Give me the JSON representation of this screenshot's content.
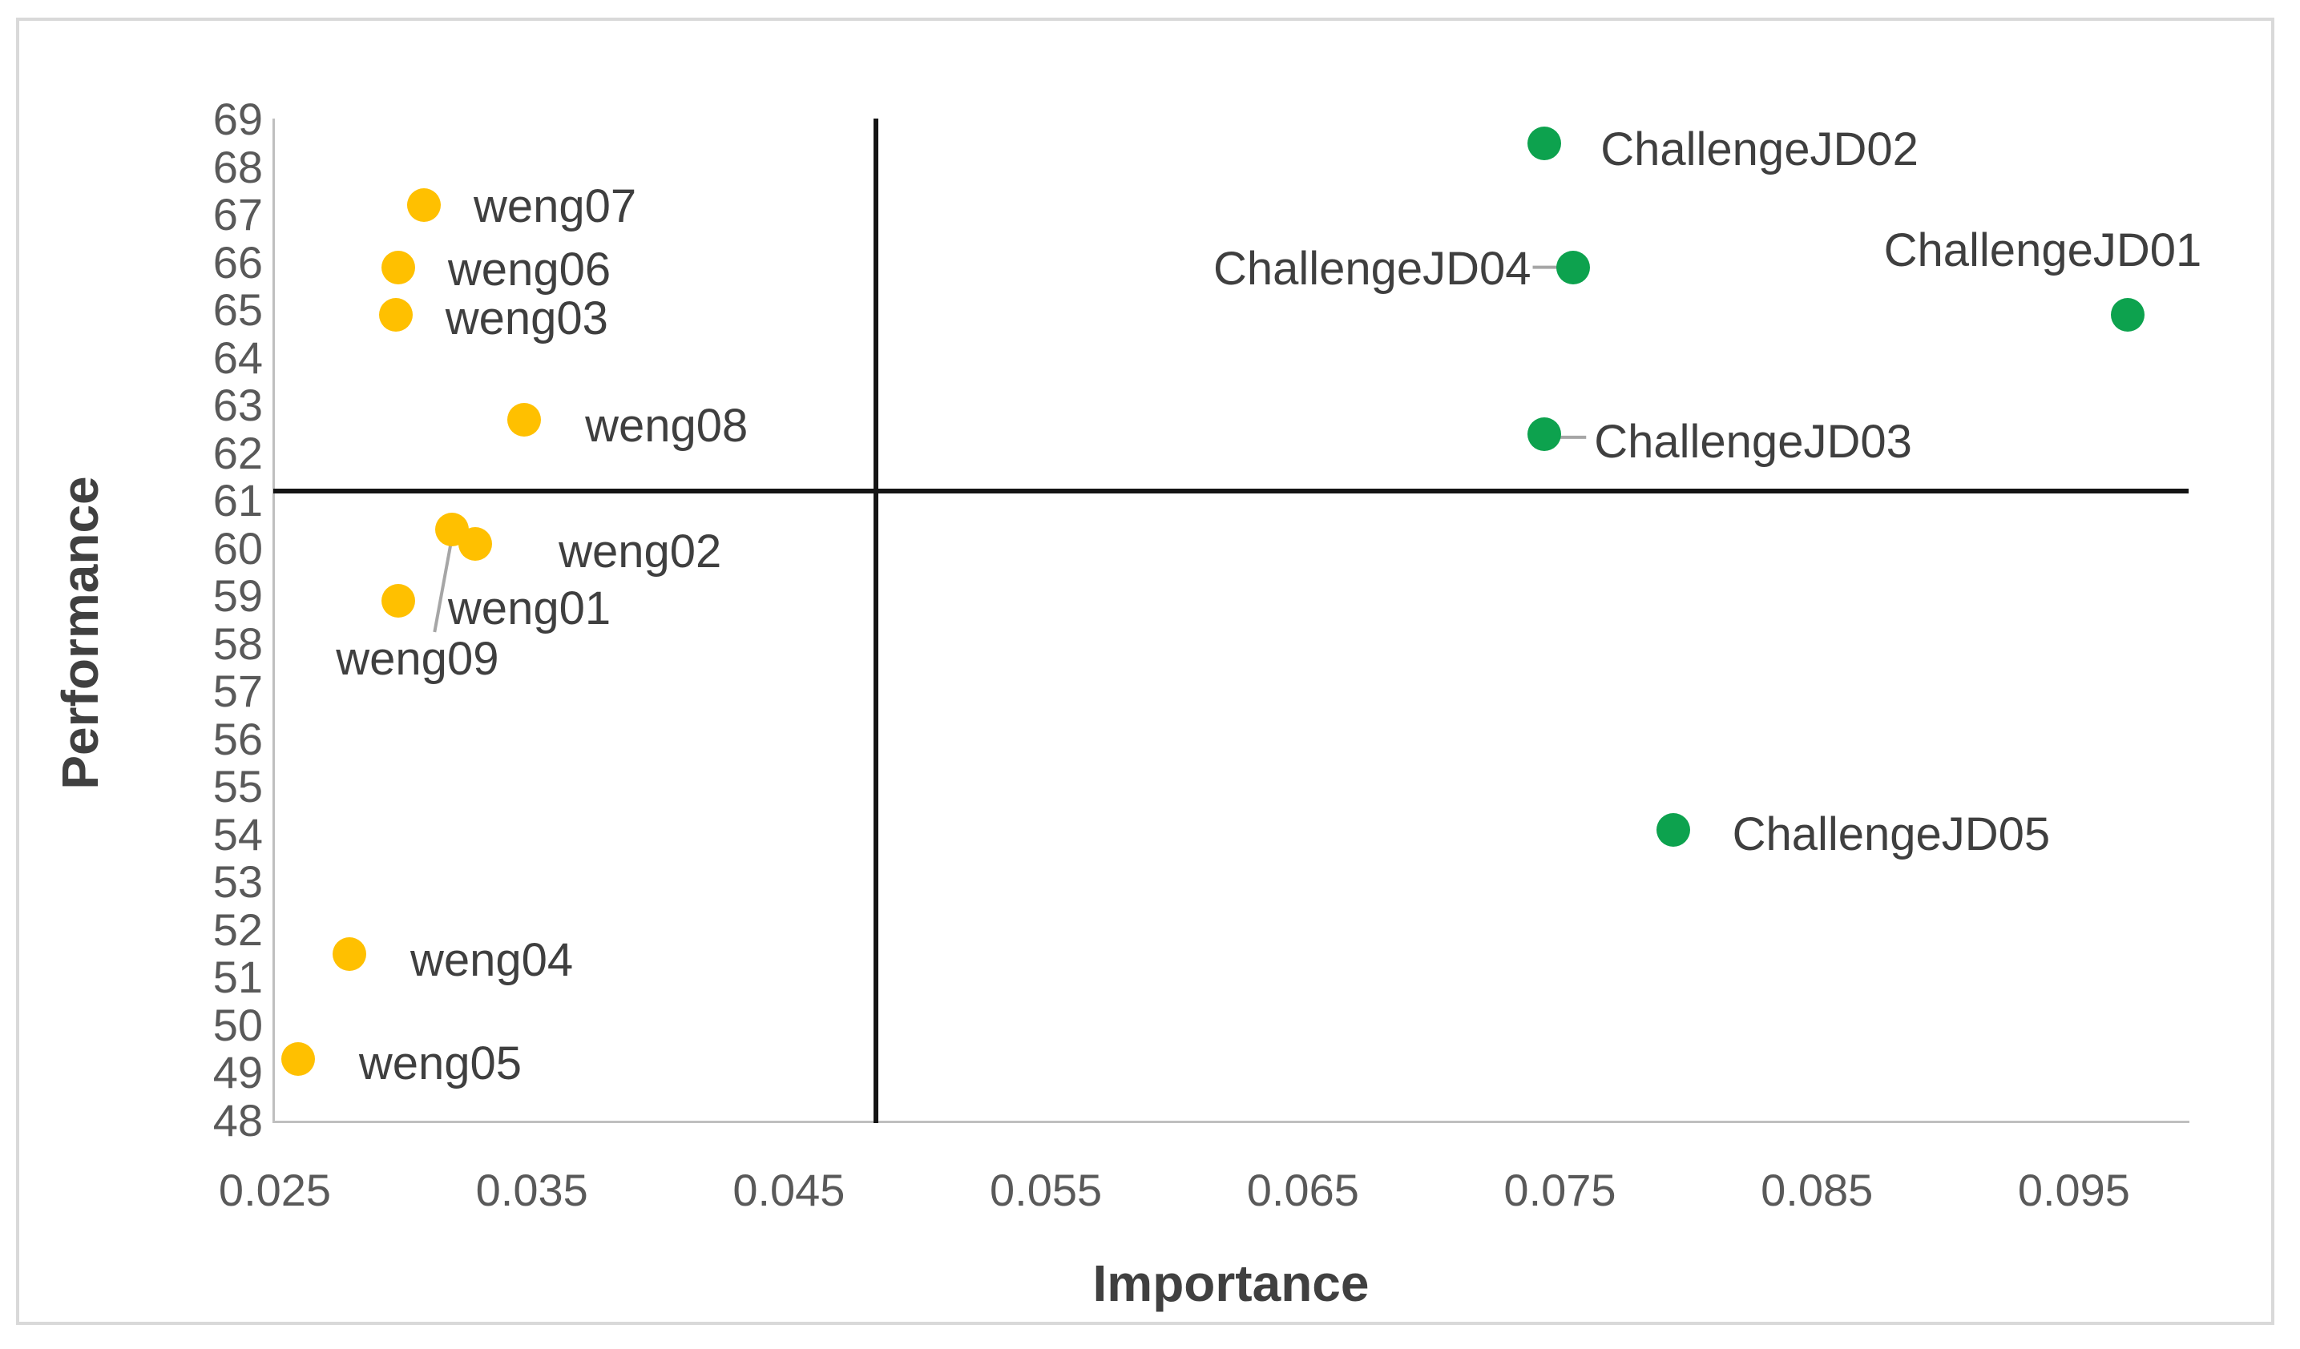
{
  "figure": {
    "background_color": "#ffffff",
    "border_color": "#d9d9d9"
  },
  "chart_data": {
    "type": "scatter",
    "title": "",
    "xlabel": "Importance",
    "ylabel": "Performance",
    "xlim": [
      0.025,
      0.0995
    ],
    "ylim": [
      48,
      69
    ],
    "grid": false,
    "x_tick_labels": [
      "0.025",
      "0.035",
      "0.045",
      "0.055",
      "0.065",
      "0.075",
      "0.085",
      "0.095"
    ],
    "x_tick_values": [
      0.025,
      0.035,
      0.045,
      0.055,
      0.065,
      0.075,
      0.085,
      0.095
    ],
    "y_tick_values": [
      48,
      49,
      50,
      51,
      52,
      53,
      54,
      55,
      56,
      57,
      58,
      59,
      60,
      61,
      62,
      63,
      64,
      65,
      66,
      67,
      68,
      69
    ],
    "crosshair": {
      "x": 0.0484,
      "y": 61.2,
      "color": "#141414",
      "comment": "quadrant divider lines"
    },
    "axis_line_color": "#bfbfbf",
    "tick_label_color": "#595959",
    "axis_title_color": "#404040",
    "data_label_color": "#3f3f3f",
    "leader_line_color": "#a6a6a6",
    "series": [
      {
        "name": "weng",
        "color": "#ffc000",
        "points": [
          {
            "label": "weng07",
            "x": 0.0308,
            "y": 67.2
          },
          {
            "label": "weng06",
            "x": 0.0298,
            "y": 65.9
          },
          {
            "label": "weng03",
            "x": 0.0297,
            "y": 64.9
          },
          {
            "label": "weng08",
            "x": 0.0347,
            "y": 62.7
          },
          {
            "label": "weng09",
            "x": 0.0319,
            "y": 60.4
          },
          {
            "label": "weng02",
            "x": 0.0328,
            "y": 60.1
          },
          {
            "label": "weng01",
            "x": 0.0298,
            "y": 58.9
          },
          {
            "label": "weng04",
            "x": 0.0279,
            "y": 51.5
          },
          {
            "label": "weng05",
            "x": 0.0259,
            "y": 49.3
          }
        ]
      },
      {
        "name": "ChallengeJD",
        "color": "#0da24e",
        "points": [
          {
            "label": "ChallengeJD02",
            "x": 0.0744,
            "y": 68.5
          },
          {
            "label": "ChallengeJD04",
            "x": 0.0755,
            "y": 65.9
          },
          {
            "label": "ChallengeJD01",
            "x": 0.0971,
            "y": 64.9
          },
          {
            "label": "ChallengeJD03",
            "x": 0.0744,
            "y": 62.4
          },
          {
            "label": "ChallengeJD05",
            "x": 0.0794,
            "y": 54.1
          }
        ]
      }
    ]
  }
}
